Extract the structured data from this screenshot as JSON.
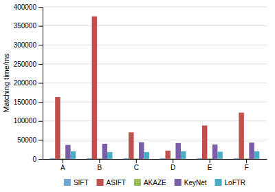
{
  "chart_data": {
    "type": "bar",
    "ylabel": "Matching time/ms",
    "categories": [
      "A",
      "B",
      "C",
      "D",
      "E",
      "F"
    ],
    "series": [
      {
        "name": "SIFT",
        "color": "#6fa8d4",
        "values": [
          2000,
          2000,
          2000,
          2000,
          2000,
          2000
        ]
      },
      {
        "name": "ASIFT",
        "color": "#c0504d",
        "values": [
          163000,
          375000,
          70000,
          22000,
          88000,
          122000
        ]
      },
      {
        "name": "AKAZE",
        "color": "#9bbb59",
        "values": [
          1500,
          1500,
          1500,
          1500,
          1500,
          1500
        ]
      },
      {
        "name": "KeyNet",
        "color": "#7b5ea7",
        "values": [
          37000,
          40000,
          44000,
          42000,
          38000,
          43000
        ]
      },
      {
        "name": "LoFTR",
        "color": "#4bacc6",
        "values": [
          20000,
          18000,
          18000,
          20000,
          19000,
          20000
        ]
      }
    ],
    "ylim": [
      0,
      400000
    ],
    "yticks": [
      0,
      50000,
      100000,
      150000,
      200000,
      250000,
      300000,
      350000,
      400000
    ],
    "grid": true,
    "legend": "bottom"
  }
}
